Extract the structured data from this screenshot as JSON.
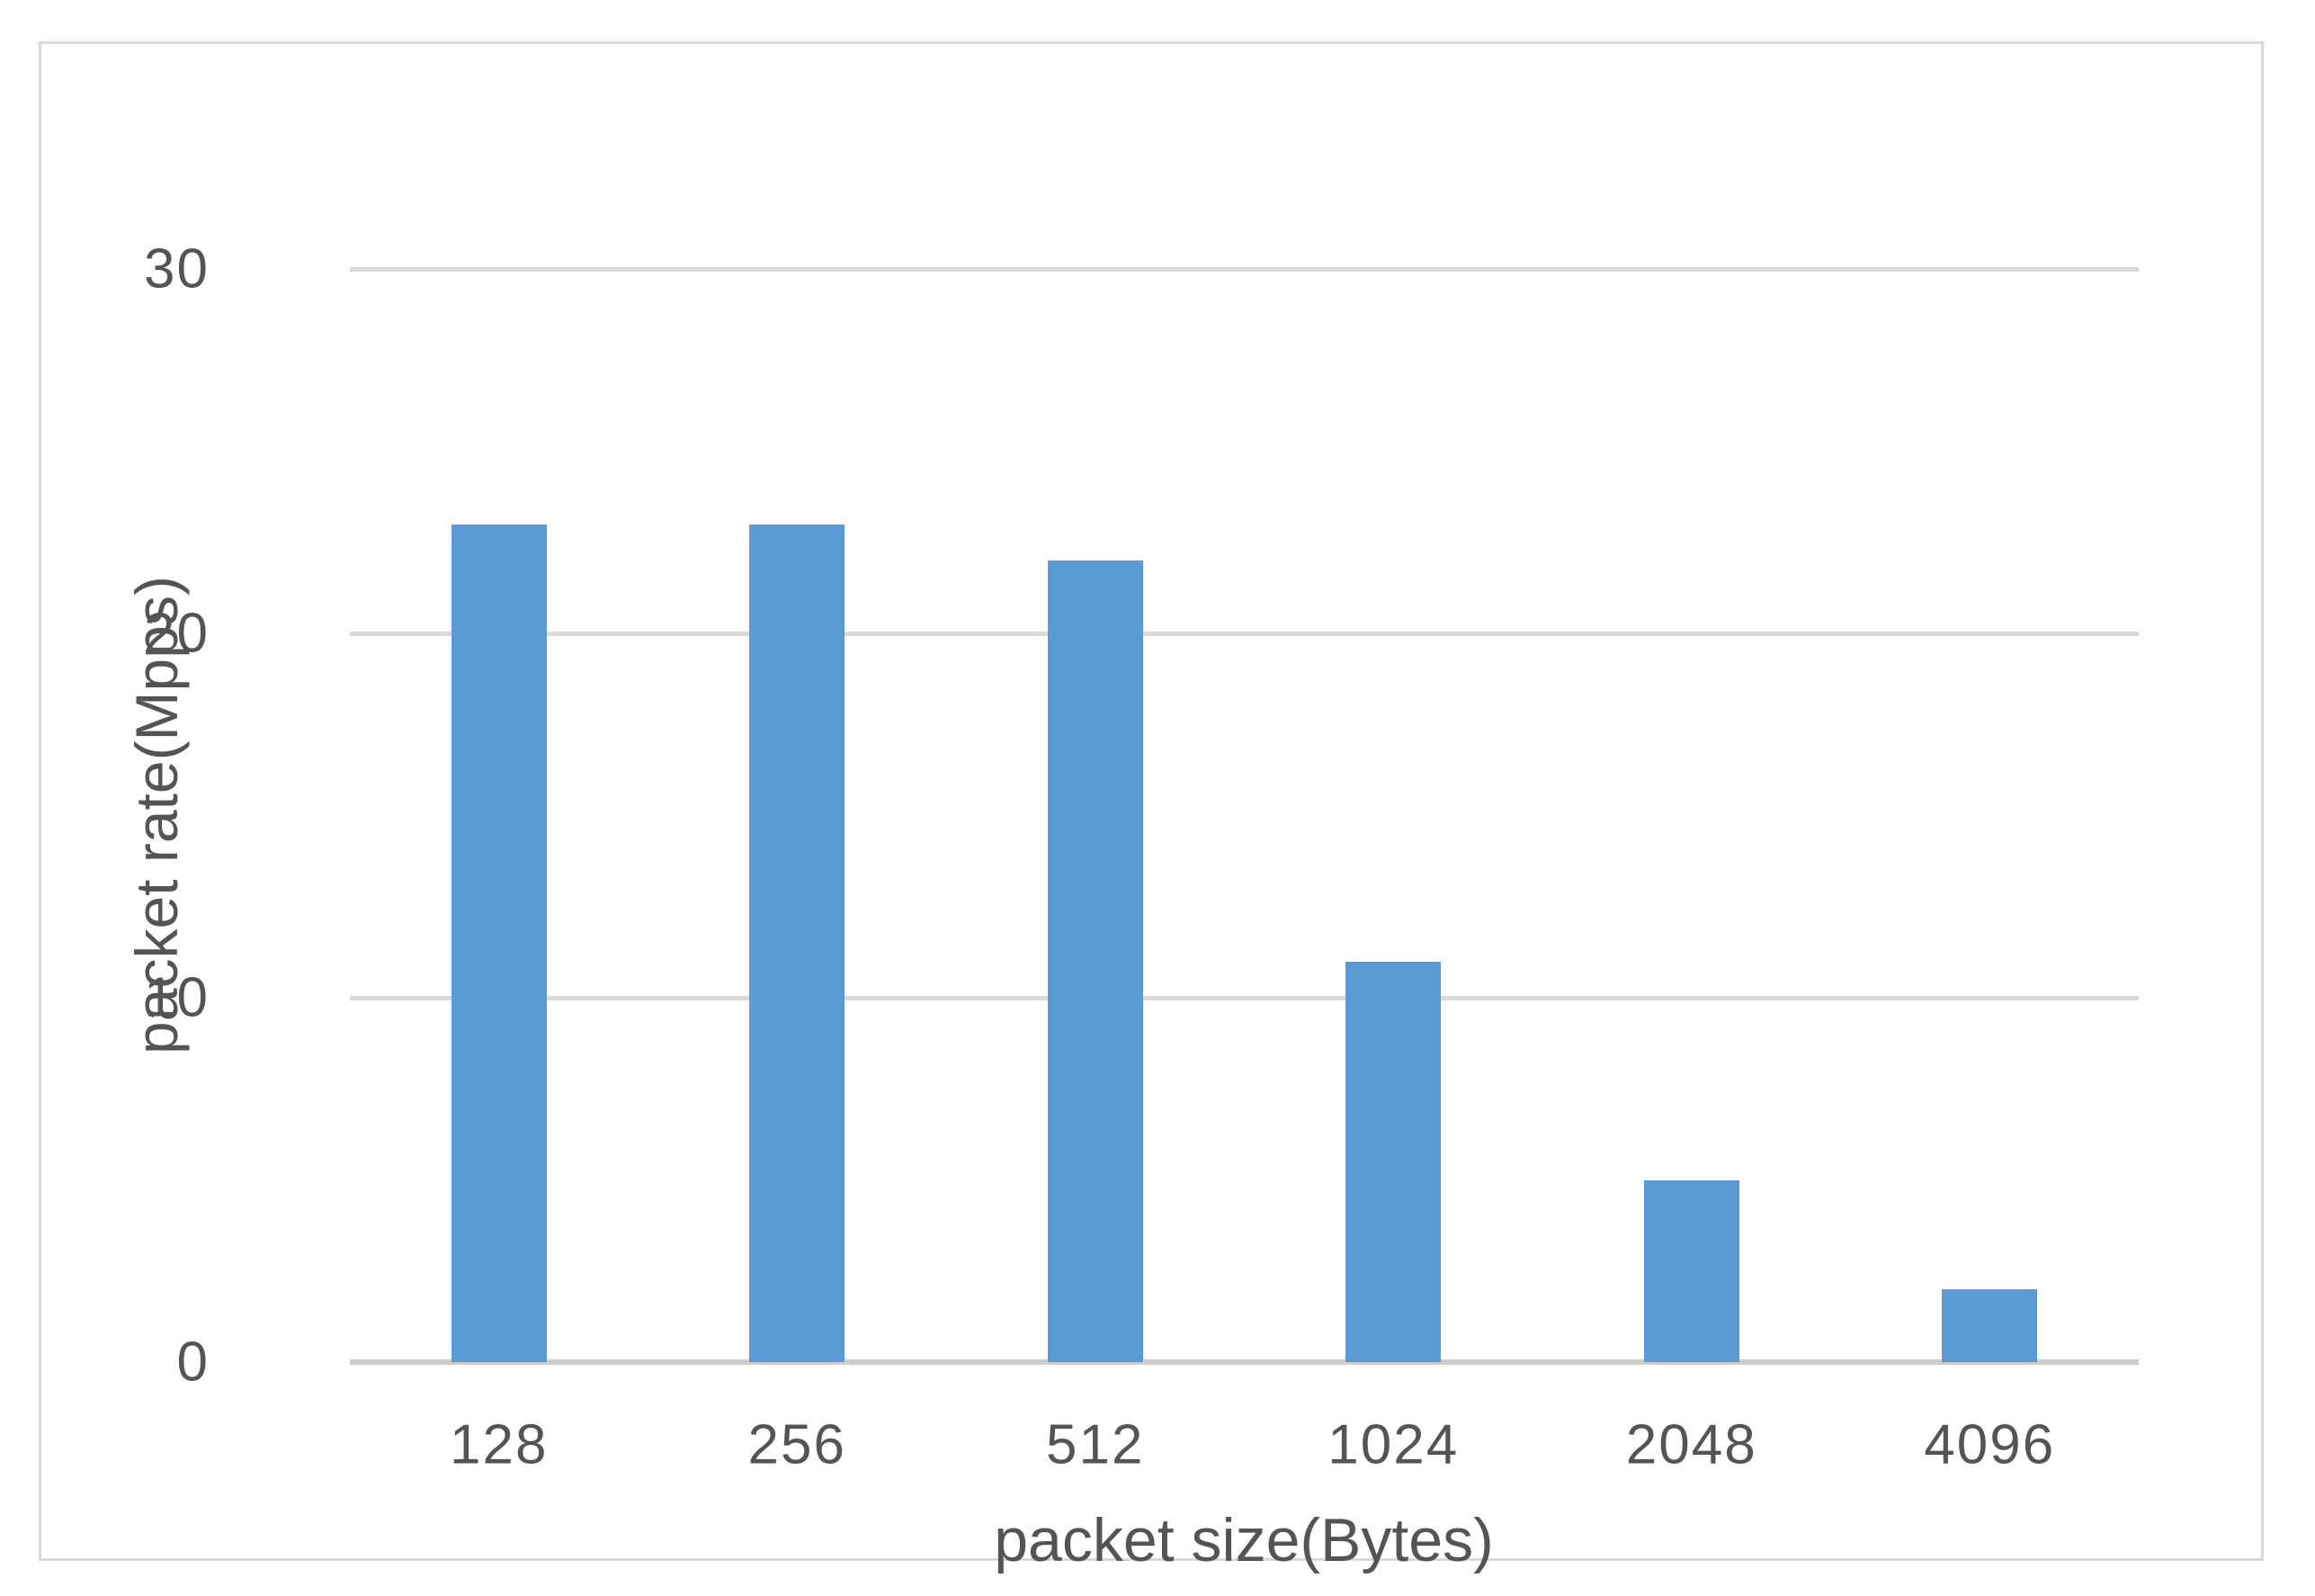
{
  "chart_data": {
    "type": "bar",
    "title": "",
    "categories": [
      "128",
      "256",
      "512",
      "1024",
      "2048",
      "4096"
    ],
    "values": [
      23,
      23,
      22,
      11,
      5,
      2
    ],
    "series_name": "packet rate",
    "xlabel": "packet size(Bytes)",
    "ylabel": "packet rate(Mpps)",
    "ylim": [
      0,
      30
    ],
    "yticks": [
      0,
      10,
      20,
      30
    ],
    "grid": true,
    "legend": false,
    "colors": {
      "bar_fill": "#5b9bd5",
      "gridline": "#d9d9d9",
      "axis_line": "#cdcdcd",
      "text": "#545454",
      "frame_border": "#d9d9d9",
      "background": "#ffffff"
    }
  }
}
